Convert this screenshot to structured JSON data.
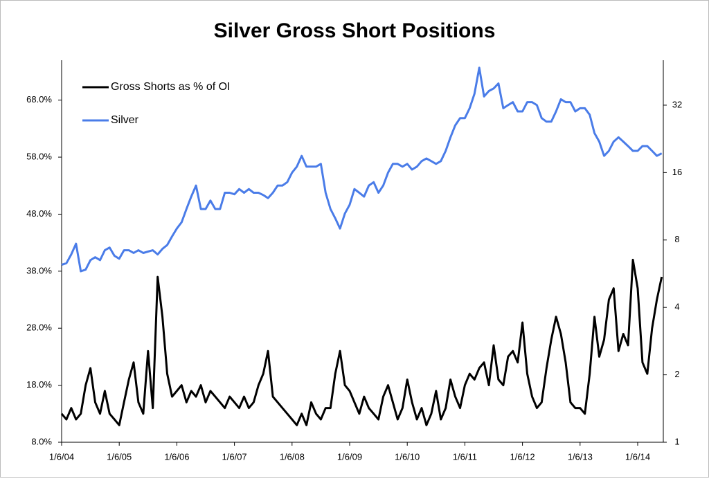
{
  "chart_data": {
    "type": "line",
    "title": "Silver Gross Short Positions",
    "categories": [
      "1/6/04",
      null,
      null,
      null,
      null,
      null,
      null,
      null,
      null,
      null,
      null,
      null,
      "1/6/05",
      null,
      null,
      null,
      null,
      null,
      null,
      null,
      null,
      null,
      null,
      null,
      "1/6/06",
      null,
      null,
      null,
      null,
      null,
      null,
      null,
      null,
      null,
      null,
      null,
      "1/6/07",
      null,
      null,
      null,
      null,
      null,
      null,
      null,
      null,
      null,
      null,
      null,
      "1/6/08",
      null,
      null,
      null,
      null,
      null,
      null,
      null,
      null,
      null,
      null,
      null,
      "1/6/09",
      null,
      null,
      null,
      null,
      null,
      null,
      null,
      null,
      null,
      null,
      null,
      "1/6/10",
      null,
      null,
      null,
      null,
      null,
      null,
      null,
      null,
      null,
      null,
      null,
      "1/6/11",
      null,
      null,
      null,
      null,
      null,
      null,
      null,
      null,
      null,
      null,
      null,
      "1/6/12",
      null,
      null,
      null,
      null,
      null,
      null,
      null,
      null,
      null,
      null,
      null,
      "1/6/13",
      null,
      null,
      null,
      null,
      null,
      null,
      null,
      null,
      null,
      null,
      null,
      "1/6/14",
      null,
      null,
      null,
      null,
      null
    ],
    "series": [
      {
        "name": "Gross Shorts as % of OI",
        "color": "#000000",
        "axis": "y",
        "values": [
          13,
          12,
          14,
          12,
          13,
          18,
          21,
          15,
          13,
          17,
          13,
          12,
          11,
          15,
          19,
          22,
          15,
          13,
          24,
          14,
          37,
          30,
          20,
          16,
          17,
          18,
          15,
          17,
          16,
          18,
          15,
          17,
          16,
          15,
          14,
          16,
          15,
          14,
          16,
          14,
          15,
          18,
          20,
          24,
          16,
          15,
          14,
          13,
          12,
          11,
          13,
          11,
          15,
          13,
          12,
          14,
          14,
          20,
          24,
          18,
          17,
          15,
          13,
          16,
          14,
          13,
          12,
          16,
          18,
          15,
          12,
          14,
          19,
          15,
          12,
          14,
          11,
          13,
          17,
          12,
          14,
          19,
          16,
          14,
          18,
          20,
          19,
          21,
          22,
          18,
          25,
          19,
          18,
          23,
          24,
          22,
          29,
          20,
          16,
          14,
          15,
          21,
          26,
          30,
          27,
          22,
          15,
          14,
          14,
          13,
          20,
          30,
          23,
          26,
          33,
          35,
          24,
          27,
          25,
          40,
          35,
          22,
          20,
          28,
          33,
          37
        ]
      },
      {
        "name": "Silver",
        "color": "#4a7ce8",
        "axis": "y2",
        "values": [
          6.2,
          6.3,
          6.9,
          7.7,
          5.8,
          5.9,
          6.5,
          6.7,
          6.5,
          7.2,
          7.4,
          6.8,
          6.6,
          7.2,
          7.2,
          7.0,
          7.2,
          7.0,
          7.1,
          7.2,
          6.9,
          7.3,
          7.6,
          8.3,
          9.0,
          9.6,
          11,
          12.5,
          14,
          11,
          11,
          12,
          11,
          11,
          13,
          13,
          12.8,
          13.5,
          13,
          13.5,
          13,
          13,
          12.7,
          12.3,
          13,
          14,
          14,
          14.5,
          16,
          17,
          19,
          17,
          17,
          17,
          17.5,
          13,
          11,
          10,
          9,
          10.5,
          11.5,
          13.5,
          13,
          12.5,
          14,
          14.5,
          13,
          14,
          16,
          17.5,
          17.5,
          17,
          17.5,
          16.5,
          17,
          18,
          18.5,
          18,
          17.5,
          18,
          20,
          23,
          26,
          28,
          28,
          31,
          36,
          47,
          35,
          37,
          38,
          40,
          31,
          32,
          33,
          30,
          30,
          33,
          33,
          32,
          28,
          27,
          27,
          30,
          34,
          33,
          33,
          30,
          31,
          31,
          29,
          24,
          22,
          19,
          20,
          22,
          23,
          22,
          21,
          20,
          20,
          21,
          21,
          20,
          19,
          19.5
        ]
      }
    ],
    "ylim": [
      8,
      75
    ],
    "yticks": [
      {
        "value": 8,
        "label": "8.0%"
      },
      {
        "value": 18,
        "label": "18.0%"
      },
      {
        "value": 28,
        "label": "28.0%"
      },
      {
        "value": 38,
        "label": "38.0%"
      },
      {
        "value": 48,
        "label": "48.0%"
      },
      {
        "value": 58,
        "label": "58.0%"
      },
      {
        "value": 68,
        "label": "68.0%"
      }
    ],
    "y2lim": [
      1,
      50.8
    ],
    "y2ticks": [
      1,
      2,
      4,
      8,
      16,
      32
    ],
    "y2scale": "log",
    "legend": "top-left",
    "grid": false
  }
}
